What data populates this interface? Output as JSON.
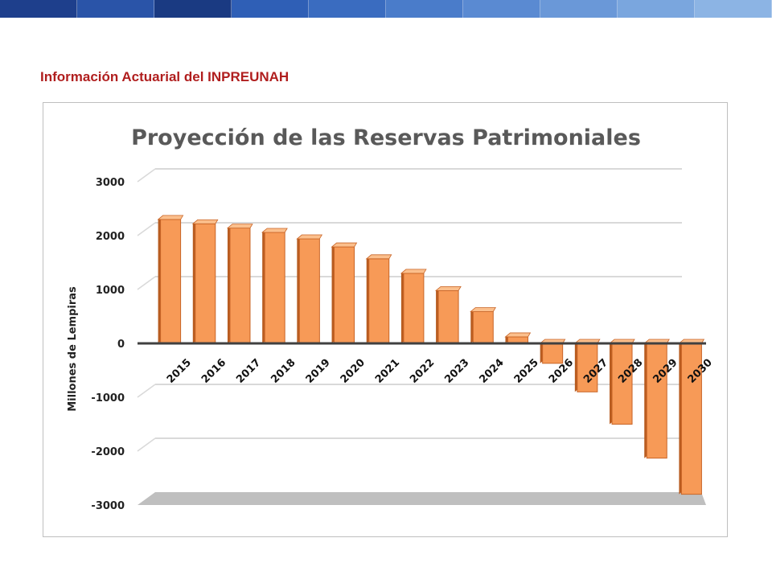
{
  "slide": {
    "title": "Información Actuarial del INPREUNAH",
    "band_colors": [
      "#1e3f8c",
      "#2a54a8",
      "#1a3a82",
      "#2f5fb6",
      "#3a6cc0",
      "#4a7cca",
      "#5a8ad2",
      "#6a98d8",
      "#7aa6de",
      "#8cb4e4"
    ]
  },
  "chart_data": {
    "type": "bar",
    "title": "Proyección de las Reservas Patrimoniales",
    "xlabel": "",
    "ylabel": "Millones de Lempiras",
    "categories": [
      "2015",
      "2016",
      "2017",
      "2018",
      "2019",
      "2020",
      "2021",
      "2022",
      "2023",
      "2024",
      "2025",
      "2026",
      "2027",
      "2028",
      "2029",
      "2030"
    ],
    "values": [
      2300,
      2220,
      2140,
      2060,
      1940,
      1790,
      1570,
      1300,
      980,
      590,
      120,
      -370,
      -900,
      -1500,
      -2130,
      -2800
    ],
    "ylim": [
      -3000,
      3000
    ],
    "yticks": [
      "3000",
      "2000",
      "1000",
      "0",
      "-1000",
      "-2000",
      "-3000"
    ],
    "grid": true,
    "style": "3d",
    "colors": {
      "bar_front": "#f79a57",
      "bar_side": "#b85c20",
      "bar_top": "#fbbf8c",
      "bar_outline": "#c86426",
      "grid": "#d9d9d9",
      "floor": "#bfbfbf",
      "zero_line": "#404040"
    }
  }
}
